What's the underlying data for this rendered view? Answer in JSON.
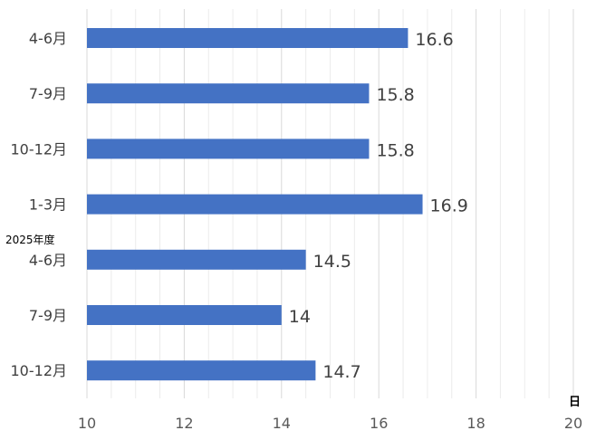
{
  "chart_data": {
    "type": "bar",
    "orientation": "horizontal",
    "categories": [
      "4-6月",
      "7-9月",
      "10-12月",
      "1-3月",
      "4-6月",
      "7-9月",
      "10-12月"
    ],
    "values": [
      16.6,
      15.8,
      15.8,
      16.9,
      14.5,
      14,
      14.7
    ],
    "value_labels": [
      "16.6",
      "15.8",
      "15.8",
      "16.9",
      "14.5",
      "14",
      "14.7"
    ],
    "group_label": "2025年度",
    "x_unit_label": "日",
    "xlim": [
      10,
      20
    ],
    "x_ticks": [
      10,
      12,
      14,
      16,
      18,
      20
    ],
    "minor_step": 0.5,
    "grid": true,
    "bar_color": "#4472c4",
    "legend": "none"
  }
}
